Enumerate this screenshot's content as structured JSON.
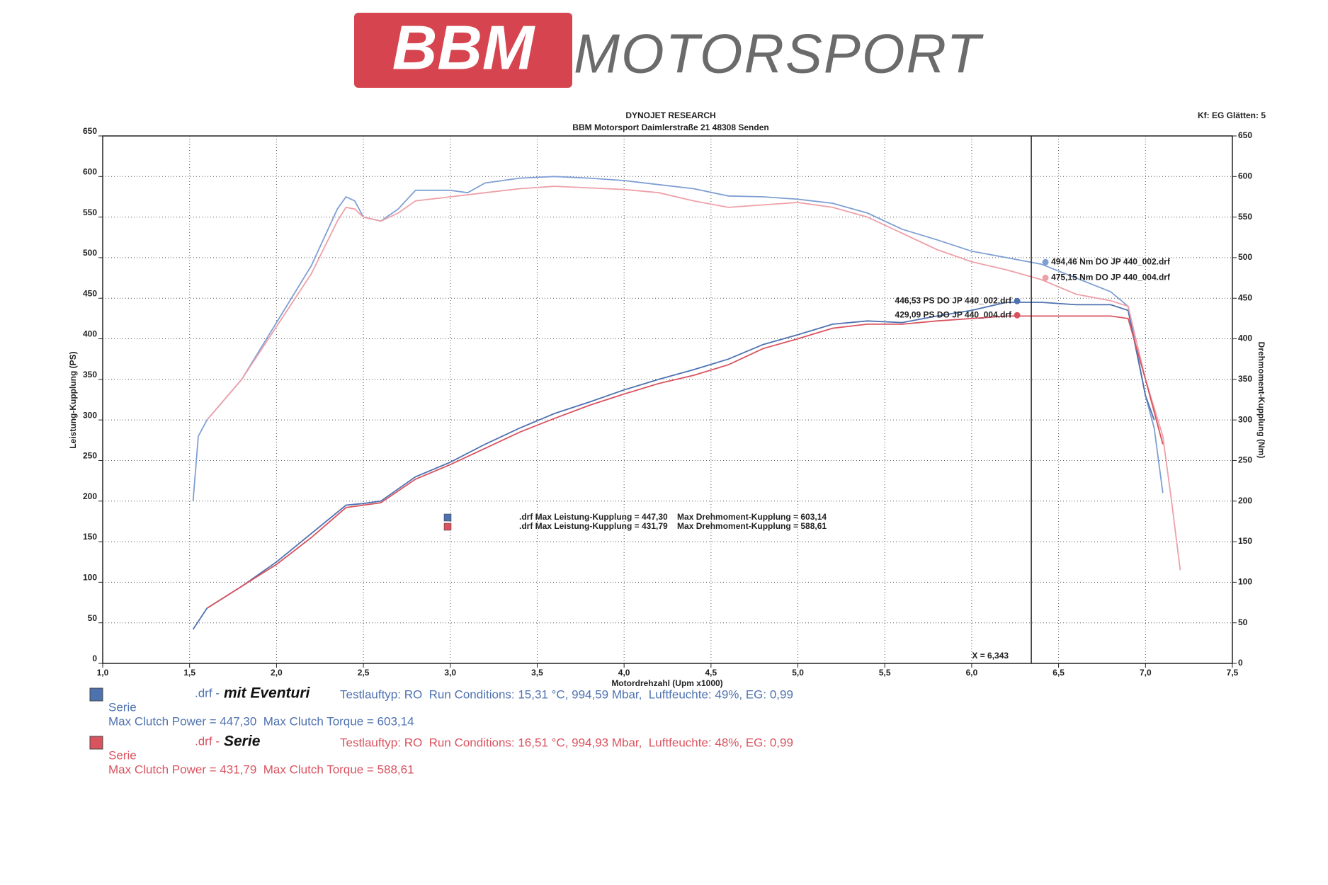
{
  "chart_data": {
    "type": "line",
    "logo": {
      "brand": "BBM",
      "name": "MOTORSPORT"
    },
    "title": "DYNOJET RESEARCH",
    "subtitle": "BBM Motorsport Daimlerstraße 21 48308 Senden",
    "settings": "Kf: EG  Glätten: 5",
    "ylabel": "Leistung-Kupplung (PS)",
    "y2label": "Drehmoment-Kupplung (Nm)",
    "xlabel": "Motordrehzahl (Upm x1000)",
    "xlim": [
      1.0,
      7.5
    ],
    "xticks": [
      {
        "value": 1.0,
        "label": "1,0"
      },
      {
        "value": 1.5,
        "label": "1,5"
      },
      {
        "value": 2.0,
        "label": "2,0"
      },
      {
        "value": 2.5,
        "label": "2,5"
      },
      {
        "value": 3.0,
        "label": "3,0"
      },
      {
        "value": 3.5,
        "label": "3,5"
      },
      {
        "value": 4.0,
        "label": "4,0"
      },
      {
        "value": 4.5,
        "label": "4,5"
      },
      {
        "value": 5.0,
        "label": "5,0"
      },
      {
        "value": 5.5,
        "label": "5,5"
      },
      {
        "value": 6.0,
        "label": "6,0"
      },
      {
        "value": 6.5,
        "label": "6,5"
      },
      {
        "value": 7.0,
        "label": "7,0"
      },
      {
        "value": 7.5,
        "label": "7,5"
      }
    ],
    "ylim": [
      0,
      650
    ],
    "yticks": [
      0,
      50,
      100,
      150,
      200,
      250,
      300,
      350,
      400,
      450,
      500,
      550,
      600,
      650
    ],
    "y2lim": [
      0,
      650
    ],
    "y2ticks": [
      0,
      50,
      100,
      150,
      200,
      250,
      300,
      350,
      400,
      450,
      500,
      550,
      600,
      650
    ],
    "grid": true,
    "cursor": {
      "x": 6.343,
      "label": "X = 6,343",
      "readings": [
        {
          "value": 494.46,
          "label": "494,46 Nm DO JP 440_002.drf",
          "axis": "y2",
          "color": "#7f9fd4"
        },
        {
          "value": 475.15,
          "label": "475,15 Nm DO JP 440_004.drf",
          "axis": "y2",
          "color": "#eea0a8"
        },
        {
          "value": 446.53,
          "label": "446,53 PS DO JP 440_002.drf",
          "axis": "y",
          "color": "#4e72b0"
        },
        {
          "value": 429.09,
          "label": "429,09 PS DO JP 440_004.drf",
          "axis": "y",
          "color": "#d9535f"
        }
      ]
    },
    "summary": [
      {
        "color": "#4e72b0",
        "text": ".drf Max Leistung-Kupplung = 447,30    Max Drehmoment-Kupplung = 603,14"
      },
      {
        "color": "#d9535f",
        "text": ".drf Max Leistung-Kupplung = 431,79    Max Drehmoment-Kupplung = 588,61"
      }
    ],
    "runs": [
      {
        "name": "mit Eventuri",
        "prefix": ".drf -",
        "color": "#4e72b0",
        "torque_color": "#7f9fd4",
        "info": "Testlauftyp: RO  Run Conditions: 15,31 °C, 994,59 Mbar,  Luftfeuchte: 49%, EG: 0,99",
        "sub": "Serie",
        "max": "Max Clutch Power = 447,30  Max Clutch Torque = 603,14",
        "power": {
          "x": [
            1.52,
            1.6,
            1.8,
            2.0,
            2.2,
            2.4,
            2.5,
            2.6,
            2.8,
            3.0,
            3.2,
            3.4,
            3.6,
            3.8,
            4.0,
            4.2,
            4.4,
            4.6,
            4.8,
            5.0,
            5.2,
            5.4,
            5.6,
            5.8,
            6.0,
            6.2,
            6.4,
            6.6,
            6.8,
            6.9,
            7.0,
            7.05
          ],
          "values": [
            42,
            68,
            95,
            125,
            160,
            195,
            197,
            200,
            230,
            248,
            270,
            290,
            308,
            322,
            337,
            350,
            362,
            375,
            393,
            405,
            418,
            422,
            420,
            428,
            435,
            445,
            445,
            442,
            442,
            435,
            330,
            300
          ]
        },
        "torque": {
          "x": [
            1.52,
            1.55,
            1.6,
            1.8,
            2.0,
            2.2,
            2.35,
            2.4,
            2.45,
            2.5,
            2.6,
            2.7,
            2.8,
            2.9,
            3.0,
            3.1,
            3.2,
            3.4,
            3.6,
            3.8,
            4.0,
            4.2,
            4.4,
            4.6,
            4.8,
            5.0,
            5.2,
            5.4,
            5.6,
            5.8,
            6.0,
            6.2,
            6.4,
            6.6,
            6.8,
            6.9,
            7.0,
            7.05,
            7.1
          ],
          "values": [
            200,
            280,
            300,
            350,
            420,
            490,
            560,
            575,
            570,
            550,
            545,
            560,
            583,
            583,
            583,
            580,
            592,
            598,
            600,
            598,
            595,
            590,
            585,
            576,
            575,
            572,
            567,
            555,
            535,
            522,
            508,
            500,
            492,
            475,
            458,
            440,
            330,
            290,
            210
          ]
        }
      },
      {
        "name": "Serie",
        "prefix": ".drf -",
        "color": "#d9535f",
        "torque_color": "#eea0a8",
        "info": "Testlauftyp: RO  Run Conditions: 16,51 °C, 994,93 Mbar,  Luftfeuchte: 48%, EG: 0,99",
        "sub": "Serie",
        "max": "Max Clutch Power = 431,79  Max Clutch Torque = 588,61",
        "power": {
          "x": [
            1.6,
            1.8,
            2.0,
            2.2,
            2.4,
            2.5,
            2.6,
            2.8,
            3.0,
            3.2,
            3.4,
            3.6,
            3.8,
            4.0,
            4.2,
            4.4,
            4.6,
            4.8,
            5.0,
            5.2,
            5.4,
            5.6,
            5.8,
            6.0,
            6.2,
            6.4,
            6.6,
            6.8,
            6.9,
            7.0,
            7.1
          ],
          "values": [
            68,
            95,
            122,
            155,
            192,
            195,
            198,
            227,
            245,
            265,
            285,
            302,
            318,
            332,
            345,
            355,
            368,
            388,
            400,
            413,
            418,
            418,
            422,
            425,
            428,
            428,
            428,
            428,
            425,
            350,
            270
          ]
        },
        "torque": {
          "x": [
            1.6,
            1.8,
            2.0,
            2.2,
            2.35,
            2.4,
            2.45,
            2.5,
            2.6,
            2.7,
            2.8,
            3.0,
            3.2,
            3.4,
            3.6,
            3.8,
            4.0,
            4.2,
            4.4,
            4.6,
            4.8,
            5.0,
            5.2,
            5.4,
            5.6,
            5.8,
            6.0,
            6.2,
            6.4,
            6.6,
            6.8,
            6.9,
            7.0,
            7.1,
            7.15,
            7.2
          ],
          "values": [
            300,
            350,
            415,
            480,
            545,
            562,
            560,
            550,
            545,
            555,
            570,
            575,
            580,
            585,
            588,
            586,
            584,
            580,
            570,
            562,
            565,
            568,
            562,
            550,
            530,
            510,
            495,
            485,
            473,
            455,
            447,
            440,
            350,
            280,
            200,
            115
          ]
        }
      }
    ]
  }
}
